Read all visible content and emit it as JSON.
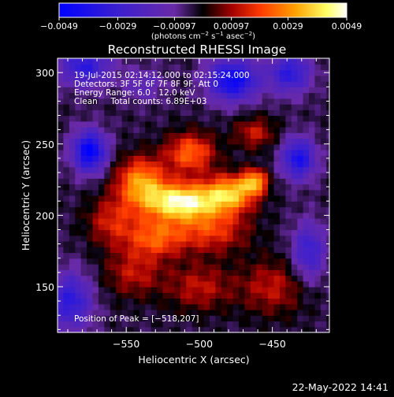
{
  "colorbar": {
    "tick_labels": [
      "−0.0049",
      "−0.0029",
      "−0.00097",
      "0.00097",
      "0.0029",
      "0.0049"
    ],
    "ticks": [
      -0.0049,
      -0.0029,
      -0.00097,
      0.00097,
      0.0029,
      0.0049
    ],
    "range": [
      -0.0049,
      0.0049
    ],
    "unit_label_1": "(photons cm",
    "unit_sup_1": "−2",
    "unit_label_2": " s",
    "unit_sup_2": "−1",
    "unit_label_3": " asec",
    "unit_sup_3": "−2",
    "unit_label_4": ")"
  },
  "chart_data": {
    "type": "heatmap",
    "title": "Reconstructed RHESSI Image",
    "xlabel": "Heliocentric X (arcsec)",
    "ylabel": "Heliocentric Y (arcsec)",
    "xlim": [
      -597,
      -411
    ],
    "ylim": [
      118,
      310
    ],
    "x_ticks": [
      -550,
      -500,
      -450
    ],
    "x_tick_labels": [
      "−550",
      "−500",
      "−450"
    ],
    "y_ticks": [
      150,
      200,
      250,
      300
    ],
    "y_tick_labels": [
      "150",
      "200",
      "250",
      "300"
    ],
    "annotations": [
      "19-Jul-2015 02:14:12.000 to 02:15:24.000",
      "Detectors: 3F 5F 6F 7F 8F 9F, Att 0",
      "Energy Range: 6.0 - 12.0 keV",
      "Clean     Total counts: 6.89E+03"
    ],
    "peak_label": "Position of Peak = [−518,207]",
    "peak": [
      -518,
      207
    ],
    "colormap": "blue-purple-black-red-yellow-white",
    "colormap_stops": [
      "#0000ff",
      "#6a2aa8",
      "#000000",
      "#a30000",
      "#ff3a00",
      "#ffa000",
      "#ffff66",
      "#ffffff"
    ],
    "blobs": [
      {
        "x": -512,
        "y": 210,
        "sx": 18,
        "sy": 9,
        "a": 0.0049
      },
      {
        "x": -478,
        "y": 216,
        "sx": 12,
        "sy": 9,
        "a": 0.0036
      },
      {
        "x": -462,
        "y": 224,
        "sx": 6,
        "sy": 6,
        "a": 0.0032
      },
      {
        "x": -540,
        "y": 224,
        "sx": 12,
        "sy": 12,
        "a": 0.0033
      },
      {
        "x": -506,
        "y": 244,
        "sx": 12,
        "sy": 10,
        "a": 0.0028
      },
      {
        "x": -530,
        "y": 185,
        "sx": 14,
        "sy": 10,
        "a": 0.0025
      },
      {
        "x": -492,
        "y": 190,
        "sx": 18,
        "sy": 11,
        "a": 0.0022
      },
      {
        "x": -560,
        "y": 196,
        "sx": 12,
        "sy": 12,
        "a": 0.0018
      },
      {
        "x": -545,
        "y": 160,
        "sx": 14,
        "sy": 12,
        "a": 0.0016
      },
      {
        "x": -500,
        "y": 150,
        "sx": 16,
        "sy": 12,
        "a": 0.0016
      },
      {
        "x": -450,
        "y": 150,
        "sx": 16,
        "sy": 14,
        "a": 0.0016
      },
      {
        "x": -462,
        "y": 258,
        "sx": 10,
        "sy": 8,
        "a": 0.0017
      },
      {
        "x": -575,
        "y": 245,
        "sx": 8,
        "sy": 10,
        "a": -0.0045
      },
      {
        "x": -578,
        "y": 305,
        "sx": 12,
        "sy": 10,
        "a": -0.003
      },
      {
        "x": -477,
        "y": 295,
        "sx": 12,
        "sy": 10,
        "a": -0.0042
      },
      {
        "x": -438,
        "y": 300,
        "sx": 10,
        "sy": 10,
        "a": -0.003
      },
      {
        "x": -432,
        "y": 240,
        "sx": 8,
        "sy": 10,
        "a": -0.0036
      },
      {
        "x": -588,
        "y": 140,
        "sx": 10,
        "sy": 14,
        "a": -0.003
      },
      {
        "x": -425,
        "y": 175,
        "sx": 8,
        "sy": 14,
        "a": -0.0026
      },
      {
        "x": -538,
        "y": 292,
        "sx": 10,
        "sy": 8,
        "a": -0.0013
      }
    ],
    "background": -0.0004
  },
  "footer_date": "22-May-2022 14:41"
}
